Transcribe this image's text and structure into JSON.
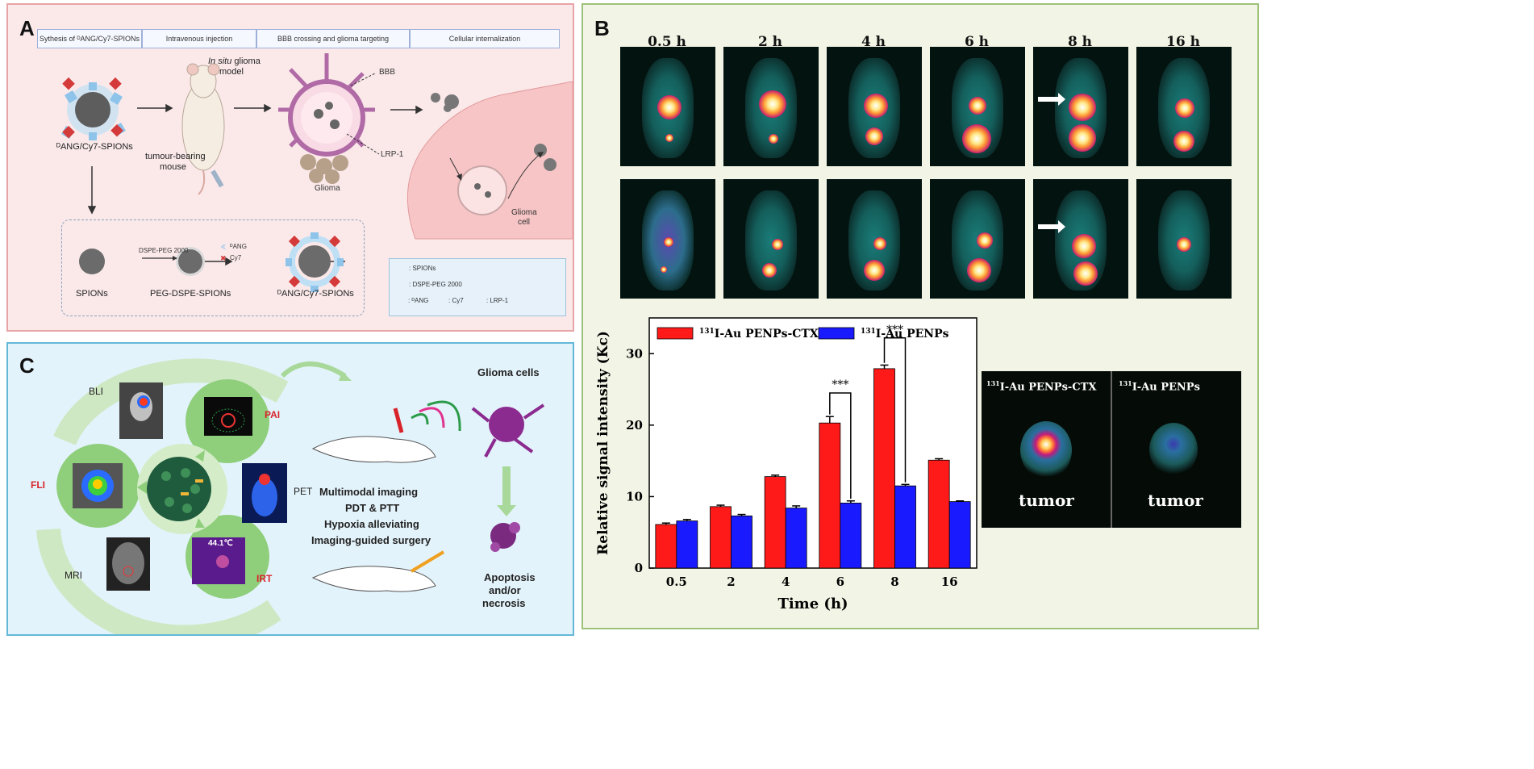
{
  "panelA": {
    "label": "A",
    "steps": [
      "Sythesis of ᴰANG/Cy7-SPIONs",
      "Intravenous injection",
      "BBB crossing and glioma targeting",
      "Cellular internalization"
    ],
    "nanoparticle_label": "ᴰANG/Cy7-SPIONs",
    "model_label_italic": "In situ",
    "model_label_rest": " glioma",
    "model_label_line2": "model",
    "mouse_label_1": "tumour-bearing",
    "mouse_label_2": "mouse",
    "bbb": "BBB",
    "lrp1": "LRP-1",
    "glioma": "Glioma",
    "glioma_cell_1": "Glioma",
    "glioma_cell_2": "cell",
    "synthesis": {
      "spions": "SPIONs",
      "dspe": "DSPE-PEG 2000",
      "peg": "PEG-DSPE-SPIONs",
      "dang": "ᴰANG",
      "cy7": "Cy7",
      "final": "ᴰANG/Cy7-SPIONs"
    },
    "legend": {
      "spions": ": SPIONs",
      "dspe": ": DSPE-PEG 2000",
      "dang": ": ᴰANG",
      "cy7": ": Cy7",
      "lrp1": ": LRP-1"
    }
  },
  "panelB": {
    "label": "B",
    "times": [
      "0.5 h",
      "2 h",
      "4 h",
      "6 h",
      "8 h",
      "16 h"
    ],
    "inset": {
      "left_title_sup": "131",
      "left_title": "I-Au PENPs-CTX",
      "right_title_sup": "131",
      "right_title": "I-Au PENPs",
      "tumor": "tumor"
    }
  },
  "chart_data": {
    "type": "bar",
    "categories": [
      "0.5",
      "2",
      "4",
      "6",
      "8",
      "16"
    ],
    "series": [
      {
        "name_sup": "131",
        "name": "I-Au PENPs-CTX",
        "color": "#ff1a1a",
        "values": [
          6.1,
          8.6,
          12.8,
          20.3,
          27.9,
          15.1
        ]
      },
      {
        "name_sup": "131",
        "name": "I-Au PENPs",
        "color": "#1a1aff",
        "values": [
          6.6,
          7.3,
          8.4,
          9.1,
          11.5,
          9.3
        ]
      }
    ],
    "errors": [
      [
        0.2,
        0.2,
        0.2,
        0.9,
        0.5,
        0.2
      ],
      [
        0.2,
        0.2,
        0.3,
        0.3,
        0.2,
        0.1
      ]
    ],
    "significance": [
      "***",
      "***"
    ],
    "xlabel": "Time (h)",
    "ylabel": "Relative signal intensity (Kc)",
    "ylim": [
      0,
      35
    ],
    "yticks": [
      "0",
      "10",
      "20",
      "30"
    ]
  },
  "panelC": {
    "label": "C",
    "bli": "BLI",
    "pai": "PAI",
    "fli": "FLI",
    "pet": "PET",
    "mri": "MRI",
    "irt": "IRT",
    "temp": "44.1℃",
    "glioma_cells": "Glioma cells",
    "apoptosis": [
      "Apoptosis",
      "and/or",
      "necrosis"
    ],
    "features": [
      "Multimodal imaging",
      "PDT & PTT",
      "Hypoxia alleviating",
      "Imaging-guided surgery"
    ]
  }
}
